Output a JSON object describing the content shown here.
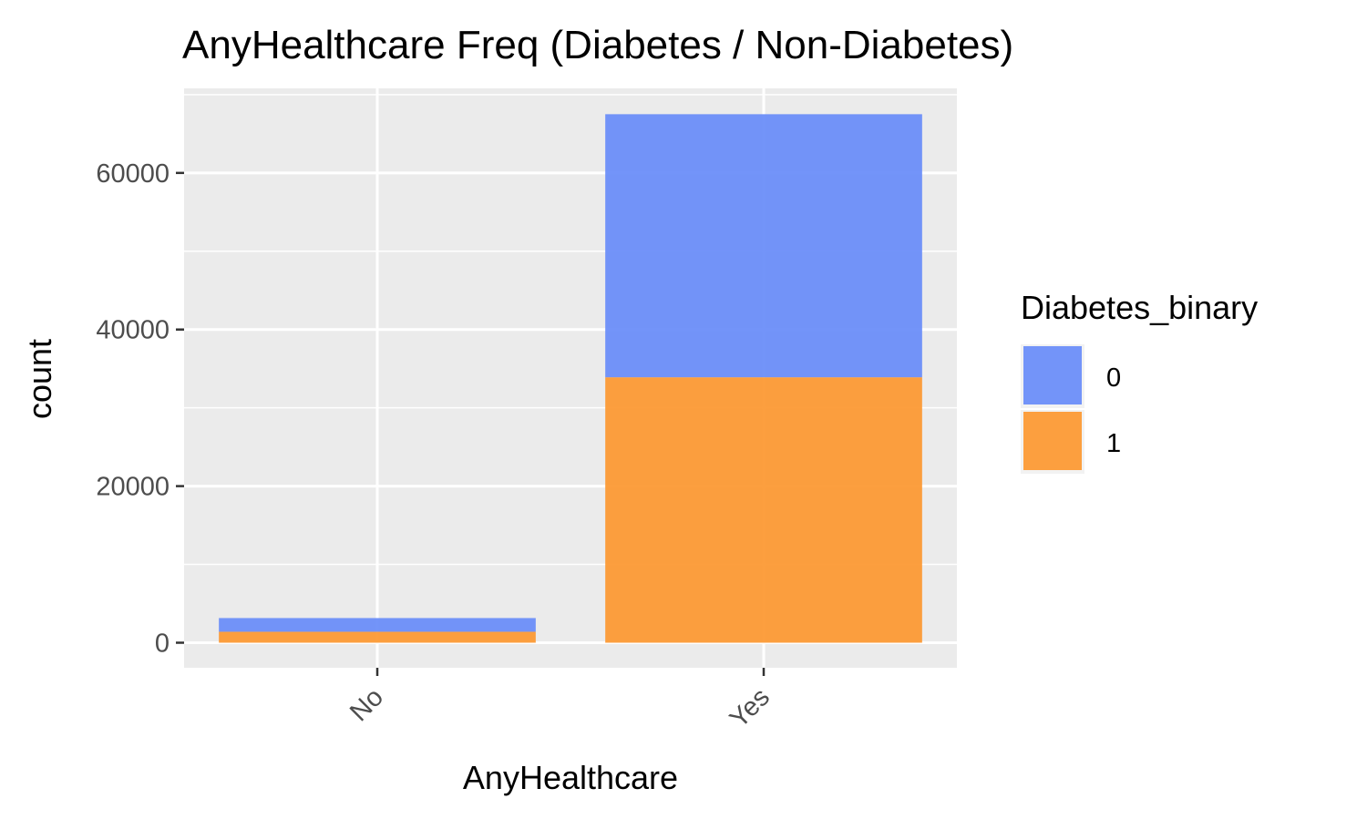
{
  "chart_data": {
    "type": "bar",
    "stacked": true,
    "title": "AnyHealthcare Freq (Diabetes / Non-Diabetes)",
    "xlabel": "AnyHealthcare",
    "ylabel": "count",
    "categories": [
      "No",
      "Yes"
    ],
    "series": [
      {
        "name": "0",
        "values": [
          1750,
          33600
        ],
        "color": "#6b8ef9"
      },
      {
        "name": "1",
        "values": [
          1400,
          33900
        ],
        "color": "#fc9a35"
      }
    ],
    "ylim": [
      -3200,
      70800
    ],
    "yticks": [
      0,
      20000,
      40000,
      60000
    ],
    "ytick_labels": [
      "0",
      "20000",
      "40000",
      "60000"
    ],
    "legend": {
      "title": "Diabetes_binary",
      "position": "right"
    },
    "panel_background": "#ebebeb",
    "grid": true
  }
}
